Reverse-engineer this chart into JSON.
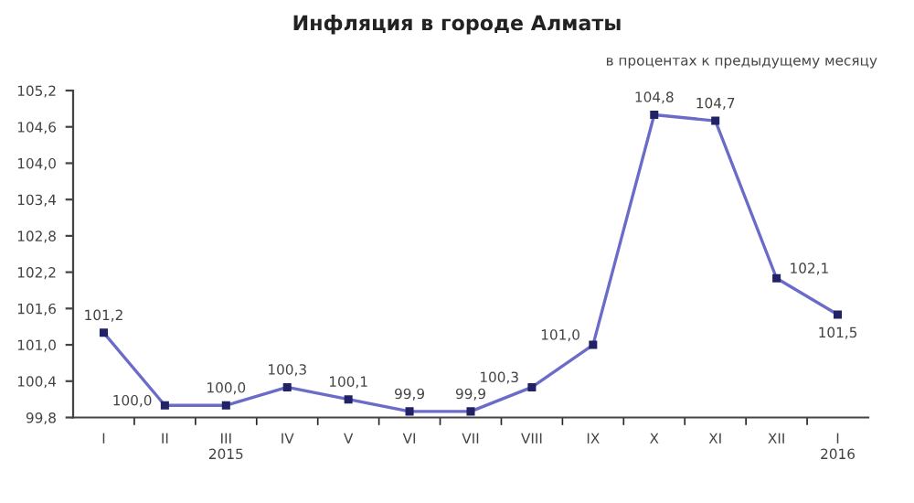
{
  "chart_data": {
    "type": "line",
    "title": "Инфляция в городе Алматы",
    "subtitle": "в процентах к предыдущему месяцу",
    "categories": [
      "I",
      "II",
      "III\n2015",
      "IV",
      "V",
      "VI",
      "VII",
      "VIII",
      "IX",
      "X",
      "XI",
      "XII",
      "I\n2016"
    ],
    "series": [
      {
        "color": "#6b6bc9",
        "values": [
          101.2,
          100.0,
          100.0,
          100.3,
          100.1,
          99.9,
          99.9,
          100.3,
          101.0,
          104.8,
          104.7,
          102.1,
          101.5
        ],
        "value_labels": [
          "101,2",
          "100,0",
          "100,0",
          "100,3",
          "100,1",
          "99,9",
          "99,9",
          "100,3",
          "101,0",
          "104,8",
          "104,7",
          "102,1",
          "101,5"
        ]
      }
    ],
    "ylim": [
      99.8,
      105.2
    ],
    "yticks": [
      {
        "value": 99.8,
        "label": "99,8"
      },
      {
        "value": 100.4,
        "label": "100,4"
      },
      {
        "value": 101.0,
        "label": "101,0"
      },
      {
        "value": 101.6,
        "label": "101,6"
      },
      {
        "value": 102.2,
        "label": "102,2"
      },
      {
        "value": 102.8,
        "label": "102,8"
      },
      {
        "value": 103.4,
        "label": "103,4"
      },
      {
        "value": 104.0,
        "label": "104,0"
      },
      {
        "value": 104.6,
        "label": "104,6"
      },
      {
        "value": 105.2,
        "label": "105,2"
      }
    ],
    "grid": false,
    "legend": false,
    "marker": "square",
    "line_style": "solid"
  }
}
